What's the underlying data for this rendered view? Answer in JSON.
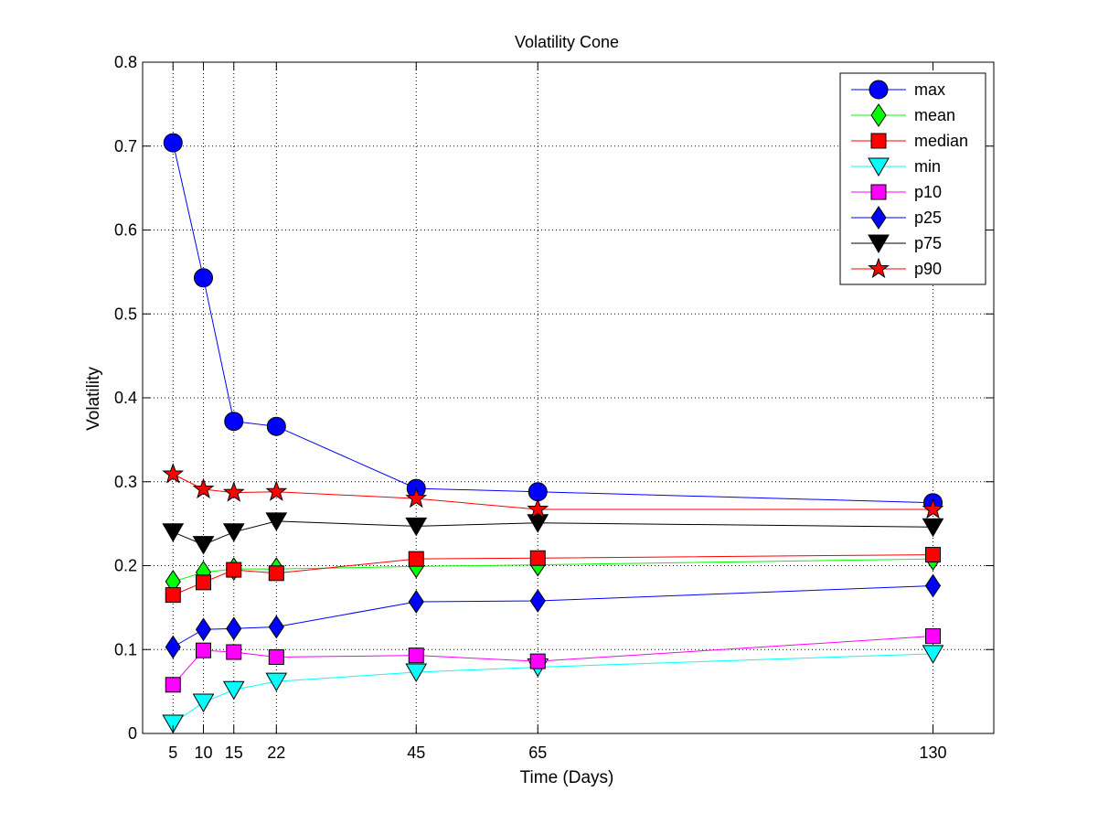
{
  "chart_data": {
    "type": "line",
    "title": "Volatility Cone",
    "xlabel": "Time (Days)",
    "ylabel": "Volatility",
    "x": [
      5,
      10,
      15,
      22,
      45,
      65,
      130
    ],
    "x_ticks": [
      5,
      10,
      15,
      22,
      45,
      65,
      130
    ],
    "xlim": [
      0,
      140
    ],
    "ylim": [
      0,
      0.8
    ],
    "y_ticks": [
      0,
      0.1,
      0.2,
      0.3,
      0.4,
      0.5,
      0.6,
      0.7,
      0.8
    ],
    "y_tick_labels": [
      "0",
      "0.1",
      "0.2",
      "0.3",
      "0.4",
      "0.5",
      "0.6",
      "0.7",
      "0.8"
    ],
    "grid": true,
    "legend_position": "top-right",
    "series": [
      {
        "name": "max",
        "marker": "circle",
        "color": "#0000ff",
        "line_color": "#0000ff",
        "values": [
          0.704,
          0.543,
          0.372,
          0.366,
          0.292,
          0.288,
          0.275
        ]
      },
      {
        "name": "mean",
        "marker": "diamond",
        "color": "#00ff00",
        "line_color": "#00ff00",
        "values": [
          0.181,
          0.192,
          0.196,
          0.196,
          0.199,
          0.201,
          0.208
        ]
      },
      {
        "name": "median",
        "marker": "square",
        "color": "#ff0000",
        "line_color": "#ff0000",
        "values": [
          0.165,
          0.18,
          0.195,
          0.191,
          0.208,
          0.209,
          0.213
        ]
      },
      {
        "name": "min",
        "marker": "triangle-down",
        "color": "#00ffff",
        "line_color": "#00ffff",
        "values": [
          0.012,
          0.037,
          0.052,
          0.062,
          0.073,
          0.079,
          0.095
        ]
      },
      {
        "name": "p10",
        "marker": "square",
        "color": "#ff00ff",
        "line_color": "#ff00ff",
        "values": [
          0.058,
          0.099,
          0.097,
          0.091,
          0.093,
          0.086,
          0.116
        ]
      },
      {
        "name": "p25",
        "marker": "diamond",
        "color": "#0000ff",
        "line_color": "#0000ff",
        "values": [
          0.103,
          0.124,
          0.125,
          0.127,
          0.157,
          0.158,
          0.176
        ]
      },
      {
        "name": "p75",
        "marker": "triangle-down",
        "color": "#000000",
        "line_color": "#000000",
        "values": [
          0.24,
          0.225,
          0.24,
          0.253,
          0.247,
          0.251,
          0.246
        ]
      },
      {
        "name": "p90",
        "marker": "star",
        "color": "#ff0000",
        "line_color": "#ff0000",
        "values": [
          0.309,
          0.291,
          0.287,
          0.288,
          0.28,
          0.267,
          0.267
        ]
      }
    ]
  }
}
